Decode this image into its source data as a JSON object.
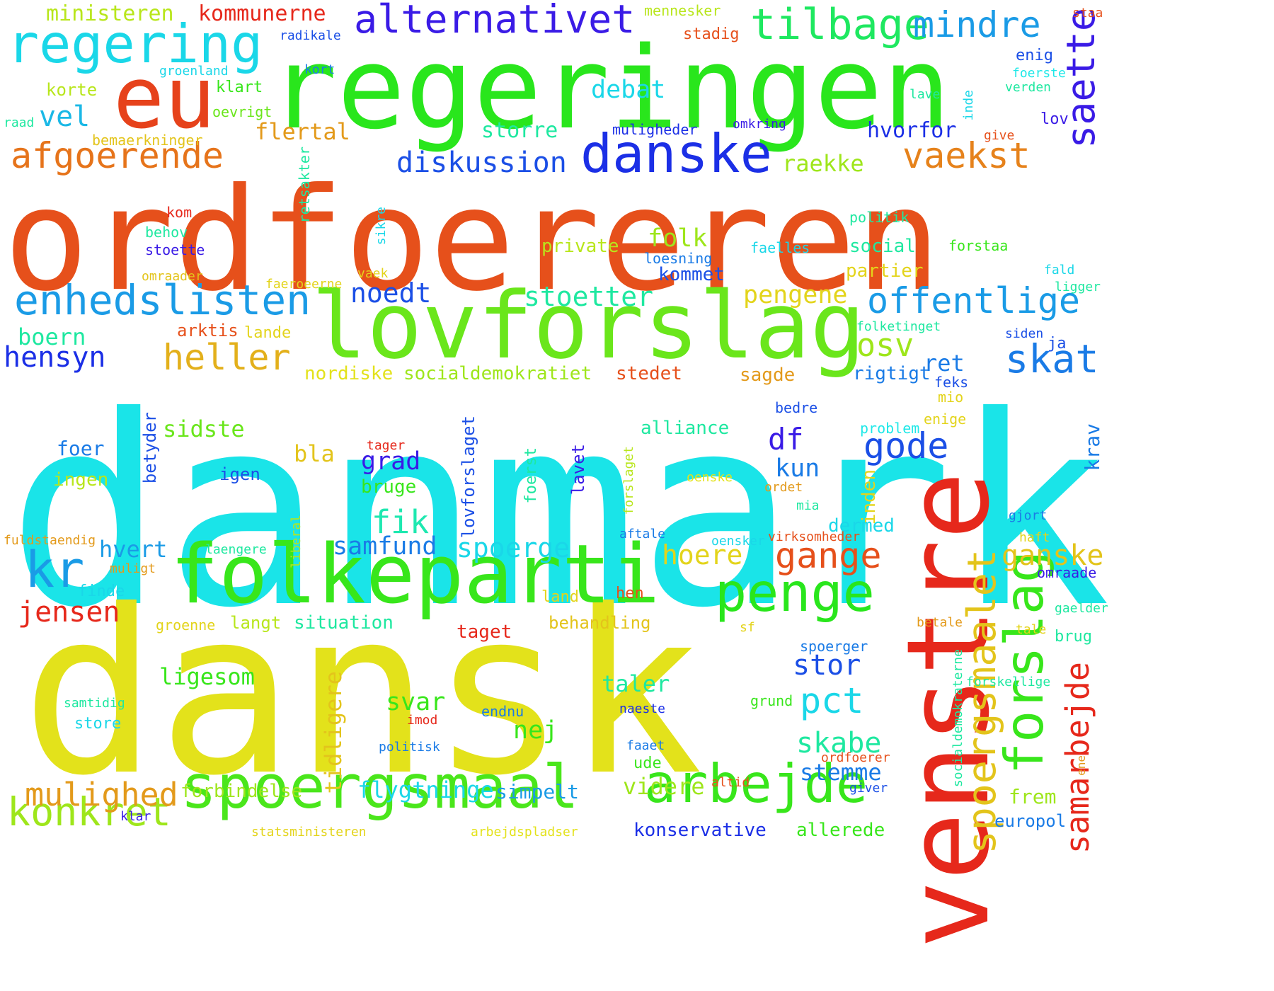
{
  "words": [
    {
      "text": "danmark",
      "color": "#1ae4e8",
      "vertical": false
    },
    {
      "text": "ordfoereren",
      "color": "#e6501b",
      "vertical": false
    },
    {
      "text": "dansk",
      "color": "#e3e21b",
      "vertical": false
    },
    {
      "text": "regeringen",
      "color": "#29e61c",
      "vertical": false
    },
    {
      "text": "lovforslag",
      "color": "#6ae61b",
      "vertical": false
    },
    {
      "text": "venstre",
      "color": "#e6281b",
      "vertical": true
    },
    {
      "text": "folkeparti",
      "color": "#38e61b",
      "vertical": false
    },
    {
      "text": "spoergsmaal",
      "color": "#4ae61b",
      "vertical": false
    },
    {
      "text": "eu",
      "color": "#e6421b",
      "vertical": false
    },
    {
      "text": "regering",
      "color": "#1ad7e8",
      "vertical": false
    },
    {
      "text": "danske",
      "color": "#1b2fe6",
      "vertical": false
    },
    {
      "text": "arbejde",
      "color": "#38e61b",
      "vertical": false
    },
    {
      "text": "forslag",
      "color": "#38e61b",
      "vertical": true
    },
    {
      "text": "penge",
      "color": "#29e61c",
      "vertical": false
    },
    {
      "text": "alternativet",
      "color": "#3a1be6",
      "vertical": false
    },
    {
      "text": "enhedslisten",
      "color": "#1a9be6",
      "vertical": false
    },
    {
      "text": "tilbage",
      "color": "#1ee860",
      "vertical": false
    },
    {
      "text": "mindre",
      "color": "#1a9be6",
      "vertical": false
    },
    {
      "text": "kr",
      "color": "#1a9be6",
      "vertical": false
    },
    {
      "text": "spoergsmaalet",
      "color": "#e3c41b",
      "vertical": true
    },
    {
      "text": "konkret",
      "color": "#9ee61b",
      "vertical": false
    },
    {
      "text": "afgoerende",
      "color": "#e6741b",
      "vertical": false
    },
    {
      "text": "saette",
      "color": "#3a1be6",
      "vertical": true
    },
    {
      "text": "offentlige",
      "color": "#1a9be6",
      "vertical": false
    },
    {
      "text": "samarbejde",
      "color": "#e6281b",
      "vertical": true
    },
    {
      "text": "heller",
      "color": "#e3b01b",
      "vertical": false
    },
    {
      "text": "vaekst",
      "color": "#e6821b",
      "vertical": false
    },
    {
      "text": "skat",
      "color": "#1a7be6",
      "vertical": false
    },
    {
      "text": "diskussion",
      "color": "#1b4fe6",
      "vertical": false
    },
    {
      "text": "mulighed",
      "color": "#e39a1b",
      "vertical": false
    },
    {
      "text": "gange",
      "color": "#e6501b",
      "vertical": false
    },
    {
      "text": "jensen",
      "color": "#e6281b",
      "vertical": false
    },
    {
      "text": "osv",
      "color": "#9ee61b",
      "vertical": false
    },
    {
      "text": "gode",
      "color": "#1b4fe6",
      "vertical": false
    },
    {
      "text": "pct",
      "color": "#1ad7e8",
      "vertical": false
    },
    {
      "text": "ganske",
      "color": "#e3c41b",
      "vertical": false
    },
    {
      "text": "hensyn",
      "color": "#1b2fe6",
      "vertical": false
    },
    {
      "text": "stoetter",
      "color": "#1ee8a0",
      "vertical": false
    },
    {
      "text": "pengene",
      "color": "#e3d41b",
      "vertical": false
    },
    {
      "text": "debat",
      "color": "#1ad7e8",
      "vertical": false
    },
    {
      "text": "hoere",
      "color": "#e3d41b",
      "vertical": false
    },
    {
      "text": "fik",
      "color": "#1ee8b0",
      "vertical": false
    },
    {
      "text": "noedt",
      "color": "#1b4fe6",
      "vertical": false
    },
    {
      "text": "spoerge",
      "color": "#1ad7e8",
      "vertical": false
    },
    {
      "text": "samfund",
      "color": "#1a7be6",
      "vertical": false
    },
    {
      "text": "folk",
      "color": "#9ee61b",
      "vertical": false
    },
    {
      "text": "skabe",
      "color": "#1ee8a0",
      "vertical": false
    },
    {
      "text": "stor",
      "color": "#1b4fe6",
      "vertical": false
    },
    {
      "text": "flygtninge",
      "color": "#1ad7e8",
      "vertical": false
    },
    {
      "text": "simpelt",
      "color": "#1a9be6",
      "vertical": false
    },
    {
      "text": "videre",
      "color": "#9ee61b",
      "vertical": false
    },
    {
      "text": "stemme",
      "color": "#1a7be6",
      "vertical": false
    },
    {
      "text": "tidligere",
      "color": "#e3c41b",
      "vertical": true
    },
    {
      "text": "vel",
      "color": "#1ab8e6",
      "vertical": false
    },
    {
      "text": "flertal",
      "color": "#e39a1b",
      "vertical": false
    },
    {
      "text": "raekke",
      "color": "#9ee61b",
      "vertical": false
    },
    {
      "text": "storre",
      "color": "#1ee8a0",
      "vertical": false
    },
    {
      "text": "hvorfor",
      "color": "#1b2fe6",
      "vertical": false
    },
    {
      "text": "ministeren",
      "color": "#b8e61b",
      "vertical": false
    },
    {
      "text": "kommunerne",
      "color": "#e6281b",
      "vertical": false
    },
    {
      "text": "sidste",
      "color": "#6ae61b",
      "vertical": false
    },
    {
      "text": "boern",
      "color": "#1ee8a0",
      "vertical": false
    },
    {
      "text": "hvert",
      "color": "#1a9be6",
      "vertical": false
    },
    {
      "text": "ligesom",
      "color": "#38e61b",
      "vertical": false
    },
    {
      "text": "svar",
      "color": "#38e61b",
      "vertical": false
    },
    {
      "text": "taler",
      "color": "#1ee8a0",
      "vertical": false
    },
    {
      "text": "nej",
      "color": "#38e61b",
      "vertical": false
    },
    {
      "text": "ret",
      "color": "#1a7be6",
      "vertical": false
    },
    {
      "text": "df",
      "color": "#3a1be6",
      "vertical": false
    },
    {
      "text": "kun",
      "color": "#1a7be6",
      "vertical": false
    },
    {
      "text": "grad",
      "color": "#3a1be6",
      "vertical": false
    },
    {
      "text": "bla",
      "color": "#e3c41b",
      "vertical": false
    },
    {
      "text": "krav",
      "color": "#1a7be6",
      "vertical": true
    },
    {
      "text": "frem",
      "color": "#9ee61b",
      "vertical": false
    },
    {
      "text": "europol",
      "color": "#1a7be6",
      "vertical": false
    },
    {
      "text": "forbindelse",
      "color": "#9ee61b",
      "vertical": false
    },
    {
      "text": "situation",
      "color": "#1ee8a0",
      "vertical": false
    },
    {
      "text": "dermed",
      "color": "#1ad7e8",
      "vertical": false
    },
    {
      "text": "konservative",
      "color": "#1b2fe6",
      "vertical": false
    },
    {
      "text": "allerede",
      "color": "#38e61b",
      "vertical": false
    },
    {
      "text": "private",
      "color": "#b8e61b",
      "vertical": false
    },
    {
      "text": "alliance",
      "color": "#1ee8a0",
      "vertical": false
    },
    {
      "text": "social",
      "color": "#1ee8a0",
      "vertical": false
    },
    {
      "text": "partier",
      "color": "#e3d41b",
      "vertical": false
    },
    {
      "text": "kommet",
      "color": "#1b4fe6",
      "vertical": false
    },
    {
      "text": "socialdemokratiet",
      "color": "#9ee61b",
      "vertical": false
    },
    {
      "text": "nordiske",
      "color": "#e3e21b",
      "vertical": false
    },
    {
      "text": "stedet",
      "color": "#e6501b",
      "vertical": false
    },
    {
      "text": "sagde",
      "color": "#e39a1b",
      "vertical": false
    },
    {
      "text": "rigtigt",
      "color": "#1a7be6",
      "vertical": false
    },
    {
      "text": "bruge",
      "color": "#38e61b",
      "vertical": false
    },
    {
      "text": "inden",
      "color": "#e3d41b",
      "vertical": true
    },
    {
      "text": "taget",
      "color": "#e6281b",
      "vertical": false
    },
    {
      "text": "behandling",
      "color": "#e3c41b",
      "vertical": false
    },
    {
      "text": "langt",
      "color": "#b8e61b",
      "vertical": false
    },
    {
      "text": "foer",
      "color": "#1a7be6",
      "vertical": false
    },
    {
      "text": "ingen",
      "color": "#b8e61b",
      "vertical": false
    },
    {
      "text": "igen",
      "color": "#1b4fe6",
      "vertical": false
    },
    {
      "text": "lovforslaget",
      "color": "#1b4fe6",
      "vertical": true
    },
    {
      "text": "lavet",
      "color": "#3a1be6",
      "vertical": true
    },
    {
      "text": "betyder",
      "color": "#1b4fe6",
      "vertical": true
    },
    {
      "text": "foerst",
      "color": "#1ee8a0",
      "vertical": true
    },
    {
      "text": "arktis",
      "color": "#e6501b",
      "vertical": false
    },
    {
      "text": "lande",
      "color": "#e3d41b",
      "vertical": false
    },
    {
      "text": "klart",
      "color": "#38e61b",
      "vertical": false
    },
    {
      "text": "korte",
      "color": "#b8e61b",
      "vertical": false
    },
    {
      "text": "oevrigt",
      "color": "#6ae61b",
      "vertical": false
    },
    {
      "text": "raad",
      "color": "#1ee8a0",
      "vertical": false
    },
    {
      "text": "bemaerkninger",
      "color": "#e3c41b",
      "vertical": false
    },
    {
      "text": "radikale",
      "color": "#1b4fe6",
      "vertical": false
    },
    {
      "text": "groenland",
      "color": "#1ad7e8",
      "vertical": false
    },
    {
      "text": "kort",
      "color": "#1a7be6",
      "vertical": false
    },
    {
      "text": "mennesker",
      "color": "#b8e61b",
      "vertical": false
    },
    {
      "text": "stadig",
      "color": "#e6501b",
      "vertical": false
    },
    {
      "text": "staa",
      "color": "#e6501b",
      "vertical": false
    },
    {
      "text": "enig",
      "color": "#1b4fe6",
      "vertical": false
    },
    {
      "text": "foerste",
      "color": "#1ee8e8",
      "vertical": false
    },
    {
      "text": "verden",
      "color": "#1ee8a0",
      "vertical": false
    },
    {
      "text": "lave",
      "color": "#1ee8a0",
      "vertical": false
    },
    {
      "text": "inde",
      "color": "#1ad7e8",
      "vertical": true
    },
    {
      "text": "lov",
      "color": "#3a1be6",
      "vertical": false
    },
    {
      "text": "give",
      "color": "#e6501b",
      "vertical": false
    },
    {
      "text": "muligheder",
      "color": "#1b2fe6",
      "vertical": false
    },
    {
      "text": "omkring",
      "color": "#3a1be6",
      "vertical": false
    },
    {
      "text": "retsakter",
      "color": "#1ee8a0",
      "vertical": true
    },
    {
      "text": "sikre",
      "color": "#1ad7e8",
      "vertical": true
    },
    {
      "text": "politik",
      "color": "#1ee8a0",
      "vertical": false
    },
    {
      "text": "kom",
      "color": "#e6281b",
      "vertical": false
    },
    {
      "text": "behov",
      "color": "#1ee8a0",
      "vertical": false
    },
    {
      "text": "stoette",
      "color": "#3a1be6",
      "vertical": false
    },
    {
      "text": "loesning",
      "color": "#1a7be6",
      "vertical": false
    },
    {
      "text": "faelles",
      "color": "#1ad7e8",
      "vertical": false
    },
    {
      "text": "forstaa",
      "color": "#38e61b",
      "vertical": false
    },
    {
      "text": "omraader",
      "color": "#e3c41b",
      "vertical": false
    },
    {
      "text": "vaek",
      "color": "#e3d41b",
      "vertical": false
    },
    {
      "text": "faeroeerne",
      "color": "#e3d41b",
      "vertical": false
    },
    {
      "text": "fald",
      "color": "#1ad7e8",
      "vertical": false
    },
    {
      "text": "ligger",
      "color": "#1ee8a0",
      "vertical": false
    },
    {
      "text": "folketinget",
      "color": "#1ee8a0",
      "vertical": false
    },
    {
      "text": "siden",
      "color": "#1b4fe6",
      "vertical": false
    },
    {
      "text": "ja",
      "color": "#1b4fe6",
      "vertical": false
    },
    {
      "text": "feks",
      "color": "#1b4fe6",
      "vertical": false
    },
    {
      "text": "mio",
      "color": "#e3d41b",
      "vertical": false
    },
    {
      "text": "bedre",
      "color": "#1b4fe6",
      "vertical": false
    },
    {
      "text": "problem",
      "color": "#1ee8e8",
      "vertical": false
    },
    {
      "text": "enige",
      "color": "#e3d41b",
      "vertical": false
    },
    {
      "text": "tager",
      "color": "#e6281b",
      "vertical": false
    },
    {
      "text": "forslaget",
      "color": "#b8e61b",
      "vertical": true
    },
    {
      "text": "oenske",
      "color": "#e3e21b",
      "vertical": false
    },
    {
      "text": "ordet",
      "color": "#e39a1b",
      "vertical": false
    },
    {
      "text": "mia",
      "color": "#1ee8a0",
      "vertical": false
    },
    {
      "text": "gjort",
      "color": "#1a7be6",
      "vertical": false
    },
    {
      "text": "liberal",
      "color": "#b8e61b",
      "vertical": true
    },
    {
      "text": "aftale",
      "color": "#1a7be6",
      "vertical": false
    },
    {
      "text": "oensker",
      "color": "#1ad7e8",
      "vertical": false
    },
    {
      "text": "virksomheder",
      "color": "#e6501b",
      "vertical": false
    },
    {
      "text": "haft",
      "color": "#e3d41b",
      "vertical": false
    },
    {
      "text": "fuldstaendig",
      "color": "#e39a1b",
      "vertical": false
    },
    {
      "text": "laengere",
      "color": "#1ee8a0",
      "vertical": false
    },
    {
      "text": "muligt",
      "color": "#e39a1b",
      "vertical": false
    },
    {
      "text": "finde",
      "color": "#1ad7e8",
      "vertical": false
    },
    {
      "text": "land",
      "color": "#e3d41b",
      "vertical": false
    },
    {
      "text": "hen",
      "color": "#e6501b",
      "vertical": false
    },
    {
      "text": "omraade",
      "color": "#3a1be6",
      "vertical": false
    },
    {
      "text": "gaelder",
      "color": "#1ee8a0",
      "vertical": false
    },
    {
      "text": "groenne",
      "color": "#e3d41b",
      "vertical": false
    },
    {
      "text": "sf",
      "color": "#e3d41b",
      "vertical": false
    },
    {
      "text": "tale",
      "color": "#e3d41b",
      "vertical": false
    },
    {
      "text": "betale",
      "color": "#e39a1b",
      "vertical": false
    },
    {
      "text": "brug",
      "color": "#1ee8a0",
      "vertical": false
    },
    {
      "text": "spoerger",
      "color": "#1a7be6",
      "vertical": false
    },
    {
      "text": "socialdemokraterne",
      "color": "#1ee8a0",
      "vertical": true
    },
    {
      "text": "forskellige",
      "color": "#1ee8a0",
      "vertical": false
    },
    {
      "text": "grund",
      "color": "#38e61b",
      "vertical": false
    },
    {
      "text": "endnu",
      "color": "#1a7be6",
      "vertical": false
    },
    {
      "text": "naeste",
      "color": "#1b2fe6",
      "vertical": false
    },
    {
      "text": "samtidig",
      "color": "#1ee8a0",
      "vertical": false
    },
    {
      "text": "store",
      "color": "#1ad7e8",
      "vertical": false
    },
    {
      "text": "imod",
      "color": "#e6281b",
      "vertical": false
    },
    {
      "text": "politisk",
      "color": "#1a7be6",
      "vertical": false
    },
    {
      "text": "faaet",
      "color": "#1a7be6",
      "vertical": false
    },
    {
      "text": "ude",
      "color": "#38e61b",
      "vertical": false
    },
    {
      "text": "ordfoerer",
      "color": "#e6501b",
      "vertical": false
    },
    {
      "text": "altid",
      "color": "#e6501b",
      "vertical": false
    },
    {
      "text": "giver",
      "color": "#1b4fe6",
      "vertical": false
    },
    {
      "text": "ene",
      "color": "#e39a1b",
      "vertical": true
    },
    {
      "text": "klar",
      "color": "#3a1be6",
      "vertical": false
    },
    {
      "text": "statsministeren",
      "color": "#e3d41b",
      "vertical": false
    },
    {
      "text": "arbejdspladser",
      "color": "#e3e21b",
      "vertical": false
    }
  ]
}
